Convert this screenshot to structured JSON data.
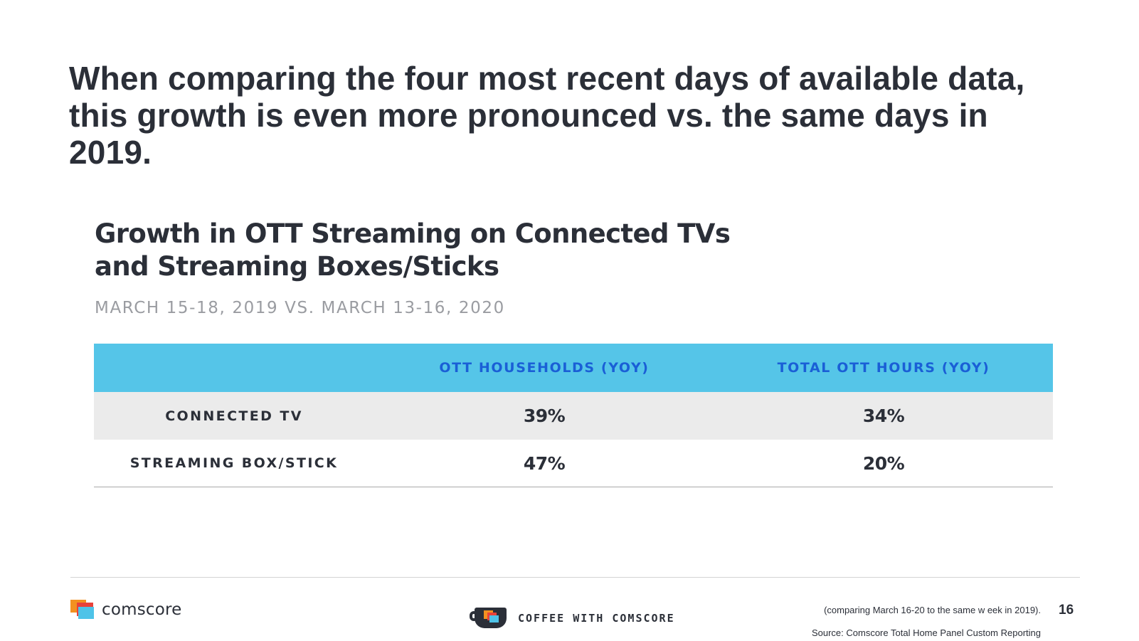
{
  "slide": {
    "headline": "When comparing the four most recent days of available data, this growth is even more pronounced vs. the same days in 2019."
  },
  "chart": {
    "title_line1": "Growth in OTT Streaming on Connected TVs",
    "title_line2": "and Streaming Boxes/Sticks",
    "subtitle": "MARCH 15-18, 2019 VS. MARCH 13-16, 2020"
  },
  "chart_data": {
    "type": "table",
    "columns": [
      "",
      "OTT HOUSEHOLDS (YOY)",
      "TOTAL OTT HOURS (YOY)"
    ],
    "rows": [
      {
        "label": "CONNECTED TV",
        "households": "39%",
        "hours": "34%"
      },
      {
        "label": "STREAMING BOX/STICK",
        "households": "47%",
        "hours": "20%"
      }
    ],
    "header_color": "#55c5e8",
    "header_text_color": "#1a5fd6",
    "shaded_row_color": "#ebebeb"
  },
  "footer": {
    "brand": "comscore",
    "brand_colors": [
      "#f39120",
      "#e8423a",
      "#4ec3e8"
    ],
    "coffee_label": "COFFEE WITH COMSCORE",
    "note": "(comparing March 16-20 to the same w eek in 2019).",
    "page_number": "16",
    "source": "Source: Comscore Total Home Panel Custom Reporting"
  }
}
